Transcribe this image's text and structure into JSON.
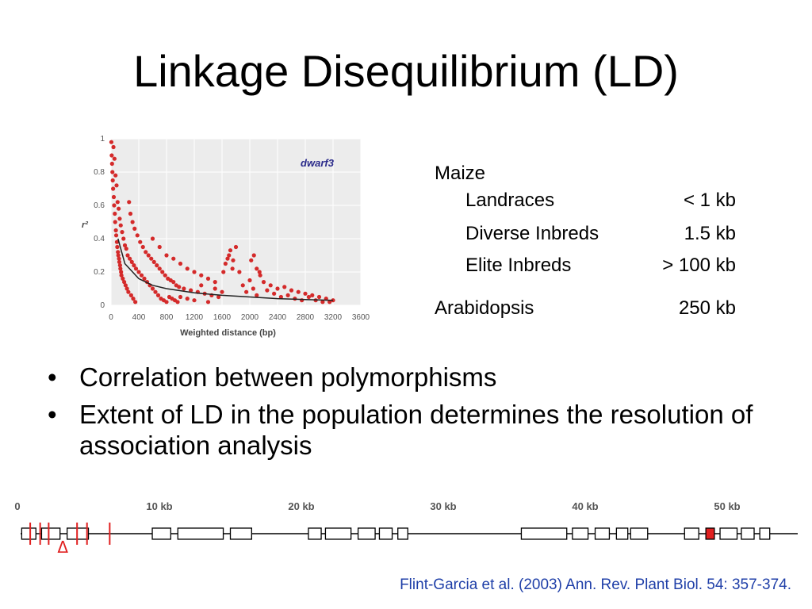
{
  "slide": {
    "title": "Linkage Disequilibrium (LD)"
  },
  "chart_data": {
    "type": "scatter",
    "annotation": "dwarf3",
    "ylabel": "r²",
    "xlabel": "Weighted distance (bp)",
    "xlim": [
      0,
      3600
    ],
    "ylim": [
      0,
      1
    ],
    "xticks": [
      "0",
      "400",
      "800",
      "1200",
      "1600",
      "2000",
      "2400",
      "2800",
      "3200",
      "3600"
    ],
    "yticks": [
      "0",
      "0.2",
      "0.4",
      "0.6",
      "0.8",
      "1"
    ],
    "grid": true,
    "point_color": "#d42a2a",
    "curve_color": "#222222",
    "points": [
      [
        5,
        0.98
      ],
      [
        10,
        0.9
      ],
      [
        15,
        0.85
      ],
      [
        20,
        0.8
      ],
      [
        25,
        0.75
      ],
      [
        30,
        0.7
      ],
      [
        35,
        0.95
      ],
      [
        40,
        0.65
      ],
      [
        45,
        0.6
      ],
      [
        50,
        0.88
      ],
      [
        55,
        0.55
      ],
      [
        60,
        0.5
      ],
      [
        65,
        0.78
      ],
      [
        70,
        0.45
      ],
      [
        75,
        0.42
      ],
      [
        80,
        0.72
      ],
      [
        85,
        0.38
      ],
      [
        90,
        0.35
      ],
      [
        95,
        0.62
      ],
      [
        100,
        0.32
      ],
      [
        105,
        0.3
      ],
      [
        110,
        0.58
      ],
      [
        115,
        0.28
      ],
      [
        120,
        0.26
      ],
      [
        125,
        0.52
      ],
      [
        130,
        0.24
      ],
      [
        135,
        0.22
      ],
      [
        140,
        0.48
      ],
      [
        145,
        0.2
      ],
      [
        150,
        0.18
      ],
      [
        160,
        0.44
      ],
      [
        170,
        0.16
      ],
      [
        180,
        0.4
      ],
      [
        190,
        0.14
      ],
      [
        200,
        0.36
      ],
      [
        210,
        0.12
      ],
      [
        220,
        0.34
      ],
      [
        230,
        0.1
      ],
      [
        240,
        0.3
      ],
      [
        250,
        0.08
      ],
      [
        260,
        0.62
      ],
      [
        270,
        0.28
      ],
      [
        280,
        0.55
      ],
      [
        290,
        0.06
      ],
      [
        300,
        0.26
      ],
      [
        310,
        0.5
      ],
      [
        320,
        0.04
      ],
      [
        330,
        0.24
      ],
      [
        340,
        0.46
      ],
      [
        350,
        0.02
      ],
      [
        360,
        0.22
      ],
      [
        380,
        0.42
      ],
      [
        400,
        0.2
      ],
      [
        420,
        0.38
      ],
      [
        440,
        0.18
      ],
      [
        460,
        0.35
      ],
      [
        480,
        0.16
      ],
      [
        500,
        0.32
      ],
      [
        520,
        0.14
      ],
      [
        540,
        0.3
      ],
      [
        560,
        0.12
      ],
      [
        580,
        0.28
      ],
      [
        600,
        0.1
      ],
      [
        620,
        0.26
      ],
      [
        640,
        0.08
      ],
      [
        660,
        0.24
      ],
      [
        680,
        0.06
      ],
      [
        700,
        0.22
      ],
      [
        720,
        0.04
      ],
      [
        740,
        0.2
      ],
      [
        760,
        0.03
      ],
      [
        780,
        0.18
      ],
      [
        800,
        0.02
      ],
      [
        820,
        0.16
      ],
      [
        840,
        0.05
      ],
      [
        860,
        0.15
      ],
      [
        880,
        0.04
      ],
      [
        900,
        0.14
      ],
      [
        920,
        0.03
      ],
      [
        940,
        0.12
      ],
      [
        960,
        0.02
      ],
      [
        980,
        0.11
      ],
      [
        1000,
        0.05
      ],
      [
        1050,
        0.1
      ],
      [
        1100,
        0.04
      ],
      [
        1150,
        0.09
      ],
      [
        1200,
        0.03
      ],
      [
        1250,
        0.08
      ],
      [
        1300,
        0.12
      ],
      [
        1350,
        0.07
      ],
      [
        1400,
        0.02
      ],
      [
        1450,
        0.06
      ],
      [
        1500,
        0.1
      ],
      [
        1550,
        0.05
      ],
      [
        1600,
        0.08
      ],
      [
        1650,
        0.25
      ],
      [
        1700,
        0.3
      ],
      [
        1750,
        0.22
      ],
      [
        1800,
        0.35
      ],
      [
        1850,
        0.2
      ],
      [
        1900,
        0.12
      ],
      [
        1950,
        0.08
      ],
      [
        2000,
        0.15
      ],
      [
        2050,
        0.1
      ],
      [
        2100,
        0.06
      ],
      [
        2150,
        0.18
      ],
      [
        2200,
        0.14
      ],
      [
        2250,
        0.09
      ],
      [
        2300,
        0.12
      ],
      [
        2350,
        0.07
      ],
      [
        2400,
        0.1
      ],
      [
        2450,
        0.05
      ],
      [
        2500,
        0.11
      ],
      [
        2550,
        0.06
      ],
      [
        2600,
        0.09
      ],
      [
        2650,
        0.04
      ],
      [
        2700,
        0.08
      ],
      [
        2750,
        0.03
      ],
      [
        2800,
        0.07
      ],
      [
        2850,
        0.05
      ],
      [
        2900,
        0.06
      ],
      [
        2950,
        0.03
      ],
      [
        3000,
        0.05
      ],
      [
        3050,
        0.02
      ],
      [
        3100,
        0.04
      ],
      [
        3150,
        0.02
      ],
      [
        3200,
        0.03
      ],
      [
        1680,
        0.28
      ],
      [
        1720,
        0.33
      ],
      [
        1760,
        0.27
      ],
      [
        2020,
        0.27
      ],
      [
        2060,
        0.3
      ],
      [
        2100,
        0.22
      ],
      [
        1620,
        0.2
      ],
      [
        2140,
        0.2
      ],
      [
        600,
        0.4
      ],
      [
        700,
        0.35
      ],
      [
        800,
        0.3
      ],
      [
        900,
        0.28
      ],
      [
        1000,
        0.25
      ],
      [
        1100,
        0.22
      ],
      [
        1200,
        0.2
      ],
      [
        1300,
        0.18
      ],
      [
        1400,
        0.16
      ],
      [
        1500,
        0.14
      ]
    ],
    "curve": [
      [
        100,
        0.4
      ],
      [
        200,
        0.25
      ],
      [
        400,
        0.16
      ],
      [
        600,
        0.12
      ],
      [
        800,
        0.1
      ],
      [
        1200,
        0.075
      ],
      [
        1600,
        0.06
      ],
      [
        2000,
        0.05
      ],
      [
        2400,
        0.04
      ],
      [
        2800,
        0.035
      ],
      [
        3200,
        0.03
      ]
    ]
  },
  "ld_table": {
    "rows": [
      {
        "label": "Maize",
        "value": "",
        "indent": false,
        "top": 0
      },
      {
        "label": "Landraces",
        "value": "< 1 kb",
        "indent": true,
        "top": 34
      },
      {
        "label": "Diverse Inbreds",
        "value": "1.5 kb",
        "indent": true,
        "top": 76
      },
      {
        "label": "Elite Inbreds",
        "value": "> 100 kb",
        "indent": true,
        "top": 116
      },
      {
        "label": "Arabidopsis",
        "value": "250 kb",
        "indent": false,
        "top": 170
      }
    ]
  },
  "bullets": [
    {
      "symbol": "•",
      "text": "Correlation between polymorphisms"
    },
    {
      "symbol": "•",
      "text": "Extent of LD in the population determines the resolution of association analysis"
    }
  ],
  "gene_map": {
    "scale_labels": [
      "0",
      "10 kb",
      "20 kb",
      "30 kb",
      "40 kb",
      "50 kb"
    ],
    "delta_symbol": "Δ",
    "red_color": "#e02020",
    "boxes": [
      {
        "x": 0.3,
        "w": 1.0
      },
      {
        "x": 1.7,
        "w": 1.3
      },
      {
        "x": 3.5,
        "w": 1.5
      },
      {
        "x": 9.5,
        "w": 1.3
      },
      {
        "x": 11.3,
        "w": 3.2
      },
      {
        "x": 15.0,
        "w": 1.5
      },
      {
        "x": 20.5,
        "w": 0.9
      },
      {
        "x": 21.7,
        "w": 1.8
      },
      {
        "x": 24.0,
        "w": 1.2
      },
      {
        "x": 25.5,
        "w": 0.9
      },
      {
        "x": 26.8,
        "w": 0.7
      },
      {
        "x": 35.5,
        "w": 3.2
      },
      {
        "x": 39.1,
        "w": 1.1
      },
      {
        "x": 40.7,
        "w": 1.0
      },
      {
        "x": 42.2,
        "w": 0.8
      },
      {
        "x": 43.2,
        "w": 1.2
      },
      {
        "x": 47.0,
        "w": 1.0
      },
      {
        "x": 48.5,
        "w": 0.6,
        "red": true
      },
      {
        "x": 49.5,
        "w": 1.2
      },
      {
        "x": 51.0,
        "w": 0.9
      },
      {
        "x": 52.3,
        "w": 0.7
      }
    ],
    "red_ticks": [
      0.9,
      1.6,
      2.2,
      4.2,
      4.9,
      6.5
    ]
  },
  "citation": "Flint-Garcia et al. (2003) Ann. Rev. Plant Biol. 54: 357-374."
}
